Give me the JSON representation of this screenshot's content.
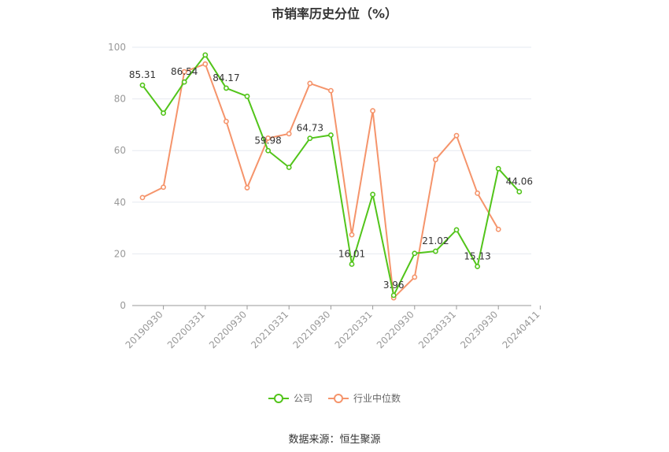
{
  "chart_data": {
    "type": "line",
    "title": "市销率历史分位（%）",
    "ylim": [
      0,
      100
    ],
    "yticks": [
      0,
      20,
      40,
      60,
      80,
      100
    ],
    "x_tick_labels": [
      "20190930",
      "20200331",
      "20200930",
      "20210331",
      "20210930",
      "20220331",
      "20220930",
      "20230331",
      "20230930",
      "20240411"
    ],
    "grid": true,
    "legend_position": "bottom",
    "series": [
      {
        "name": "公司",
        "color": "#52c41a",
        "values": [
          85.31,
          74.5,
          86.54,
          97.0,
          84.17,
          81.0,
          59.98,
          53.5,
          64.73,
          66.0,
          16.01,
          43.0,
          3.96,
          20.2,
          21.02,
          29.3,
          15.13,
          53.0,
          44.06
        ],
        "labels": [
          "85.31",
          "",
          "86.54",
          "",
          "84.17",
          "",
          "59.98",
          "",
          "64.73",
          "",
          "16.01",
          "",
          "3.96",
          "",
          "21.02",
          "",
          "15.13",
          "",
          "44.06"
        ]
      },
      {
        "name": "行业中位数",
        "color": "#f5946b",
        "values": [
          41.8,
          45.8,
          90.5,
          93.5,
          71.3,
          45.6,
          64.8,
          66.5,
          86.0,
          83.2,
          27.4,
          75.4,
          3.0,
          11.0,
          56.5,
          65.8,
          43.5,
          29.5
        ]
      }
    ]
  },
  "legend": {
    "company": "公司",
    "industry": "行业中位数"
  },
  "source": "数据来源：恒生聚源"
}
